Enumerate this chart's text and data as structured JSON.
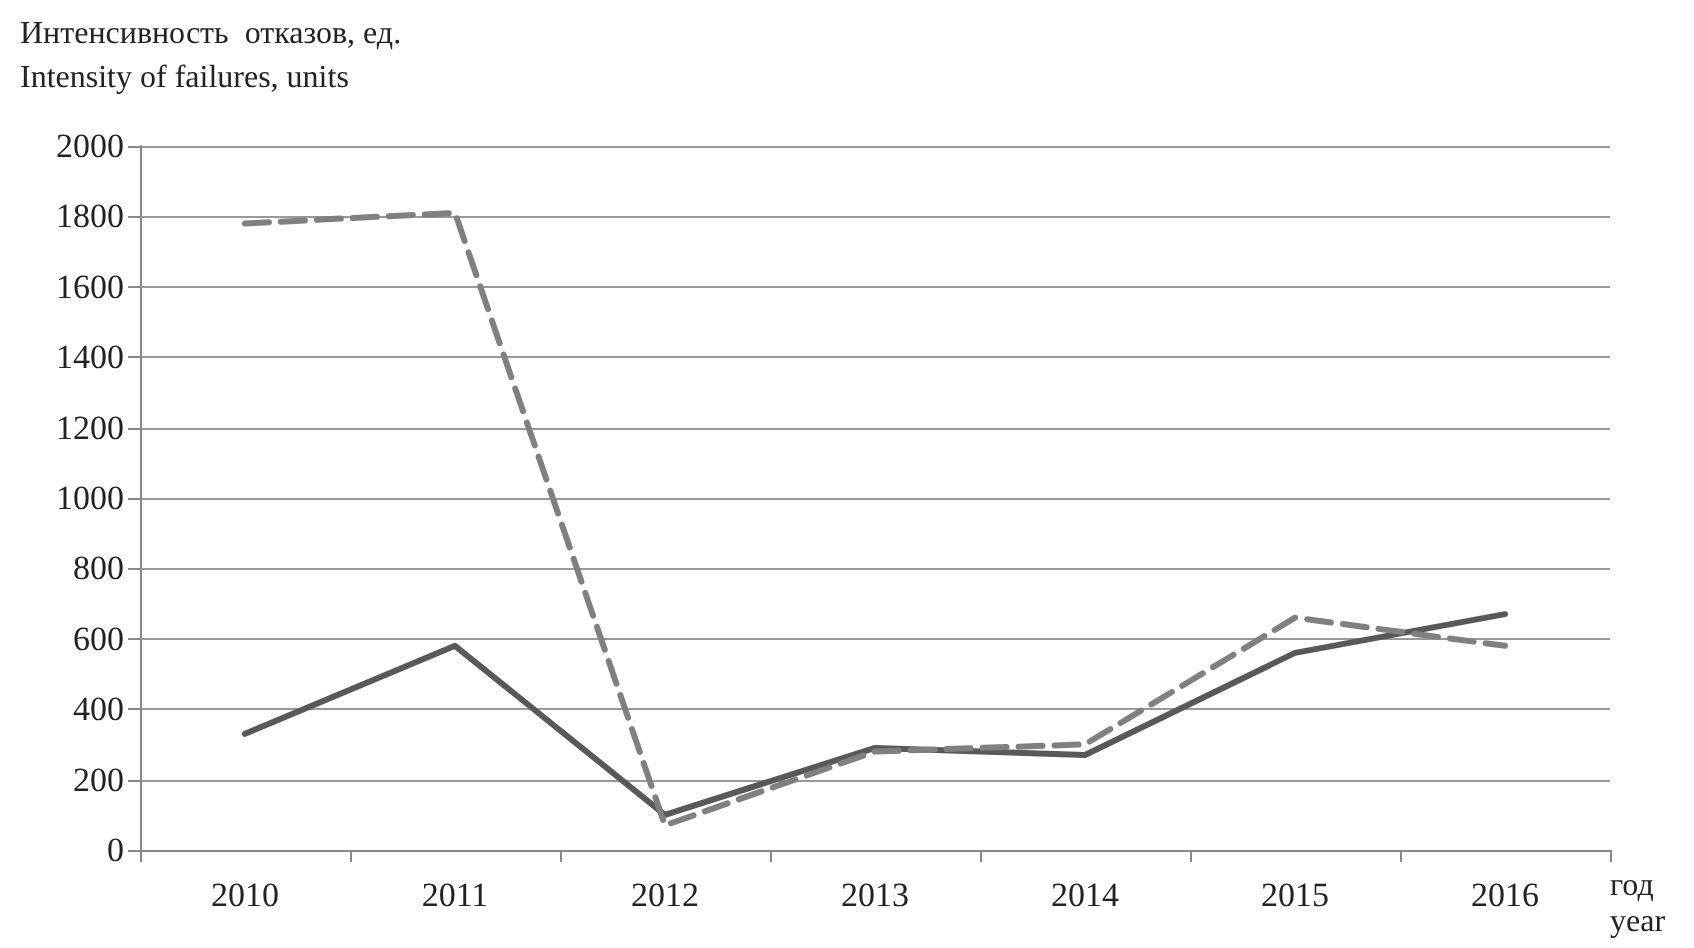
{
  "chart_data": {
    "type": "line",
    "ylabel": "Интенсивность  отказов, ед.\nIntensity of failures, units",
    "xlabel": "год\nyear",
    "categories": [
      "2010",
      "2011",
      "2012",
      "2013",
      "2014",
      "2015",
      "2016"
    ],
    "series": [
      {
        "color": "#595959",
        "line_style": "solid",
        "values": [
          330,
          580,
          100,
          290,
          270,
          560,
          670
        ]
      },
      {
        "color": "#808080",
        "line_style": "dashed",
        "values": [
          1780,
          1810,
          70,
          280,
          300,
          660,
          580
        ]
      }
    ],
    "ylim": [
      0,
      2000
    ],
    "yticks": [
      0,
      200,
      400,
      600,
      800,
      1000,
      1200,
      1400,
      1600,
      1800,
      2000
    ],
    "grid": "y",
    "marker": "none"
  }
}
